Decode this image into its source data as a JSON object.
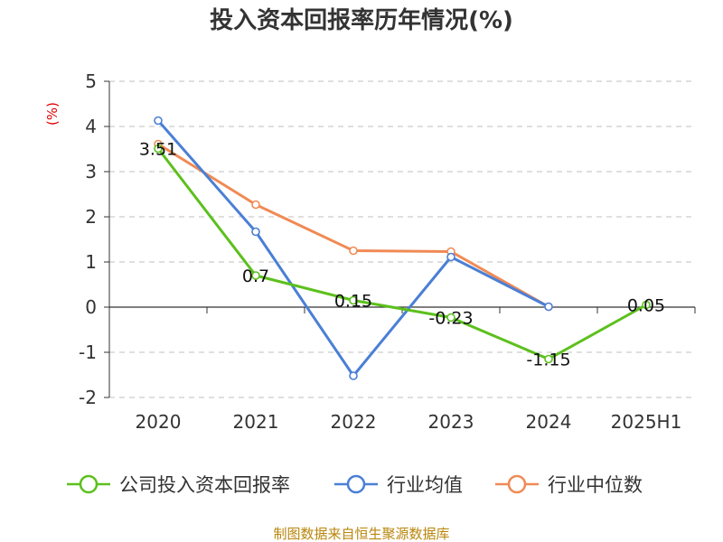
{
  "chart_data": {
    "type": "line",
    "title": "投入资本回报率历年情况(%)",
    "ylabel": "(%)",
    "xlabel": "",
    "categories": [
      "2020",
      "2021",
      "2022",
      "2023",
      "2024",
      "2025H1"
    ],
    "ylim": [
      -2,
      5
    ],
    "yticks": [
      5,
      4,
      3,
      2,
      1,
      0,
      -1,
      -2
    ],
    "grid": true,
    "legend_position": "bottom",
    "series": [
      {
        "name": "公司投入资本回报率",
        "color": "#5cc01c",
        "values": [
          3.51,
          0.7,
          0.15,
          -0.23,
          -1.15,
          0.05
        ],
        "labels": [
          "3.51",
          "0.7",
          "0.15",
          "-0.23",
          "-1.15",
          "0.05"
        ]
      },
      {
        "name": "行业均值",
        "color": "#4a7fd6",
        "values": [
          4.13,
          1.67,
          -1.52,
          1.11,
          0.01,
          null
        ]
      },
      {
        "name": "行业中位数",
        "color": "#f08a55",
        "values": [
          3.61,
          2.27,
          1.25,
          1.23,
          0.01,
          null
        ]
      }
    ]
  },
  "source_note": "制图数据来自恒生聚源数据库"
}
